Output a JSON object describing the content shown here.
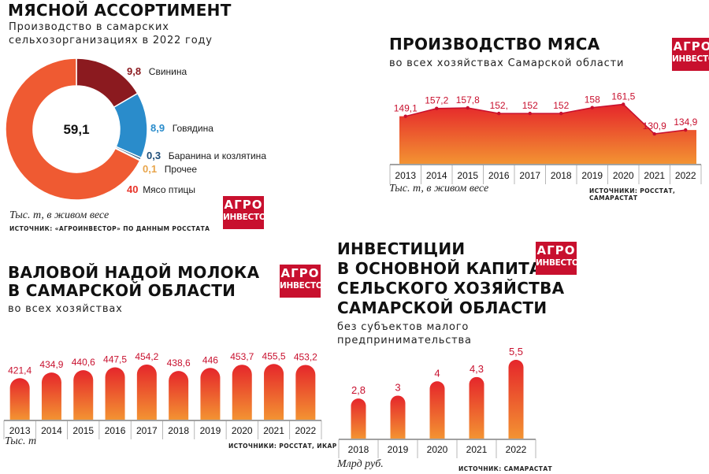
{
  "colors": {
    "pork": "#8b1a1f",
    "beef": "#2a8ccb",
    "lamb": "#1f4e79",
    "other": "#e8a54b",
    "poultry": "#e8342a",
    "donut_outer": "#ef5a32",
    "bar_top": "#e5262b",
    "bar_bottom": "#f39332",
    "value_label": "#c8102e",
    "logo": "#c8102e"
  },
  "logo": {
    "line1": "АГРО",
    "line2": "ИНВЕСТОР"
  },
  "meat_assortment": {
    "title": "МЯСНОЙ АССОРТИМЕНТ",
    "subtitle_line1": "Производство в самарских",
    "subtitle_line2": "сельхозорганизациях в 2022 году",
    "total": "59,1",
    "unit": "Тыс. т, в живом весе",
    "source": "ИСТОЧНИК: «АГРОИНВЕСТОР» ПО ДАННЫМ РОССТАТА"
  },
  "meat_production": {
    "title": "ПРОИЗВОДСТВО МЯСА",
    "subtitle": "во всех хозяйствах Самарской области",
    "unit": "Тыс. т, в живом весе",
    "source": "ИСТОЧНИКИ: РОССТАТ, САМАРАСТАТ"
  },
  "milk": {
    "title_line1": "ВАЛОВОЙ НАДОЙ МОЛОКА",
    "title_line2": "В САМАРСКОЙ ОБЛАСТИ",
    "subtitle": "во всех хозяйствах",
    "unit": "Тыс. т",
    "source": "ИСТОЧНИКИ: РОССТАТ, ИКАР"
  },
  "investments": {
    "title_line1": "ИНВЕСТИЦИИ",
    "title_line2": "В ОСНОВНОЙ КАПИТАЛ",
    "title_line3": "СЕЛЬСКОГО ХОЗЯЙСТВА",
    "title_line4": "САМАРСКОЙ ОБЛАСТИ",
    "subtitle_line1": "без субъектов малого",
    "subtitle_line2": "предпринимательства",
    "unit": "Млрд руб.",
    "source": "ИСТОЧНИК: САМАРАСТАТ"
  },
  "chart_data": [
    {
      "type": "pie",
      "title": "МЯСНОЙ АССОРТИМЕНТ",
      "center_label": "59,1",
      "slices": [
        {
          "name": "Свинина",
          "value": 9.8,
          "label": "9,8",
          "color": "#8b1a1f"
        },
        {
          "name": "Говядина",
          "value": 8.9,
          "label": "8,9",
          "color": "#2a8ccb"
        },
        {
          "name": "Баранина и козлятина",
          "value": 0.3,
          "label": "0,3",
          "color": "#1f4e79"
        },
        {
          "name": "Прочее",
          "value": 0.1,
          "label": "0,1",
          "color": "#e8a54b"
        },
        {
          "name": "Мясо птицы",
          "value": 40,
          "label": "40",
          "color": "#e8342a"
        }
      ]
    },
    {
      "type": "area",
      "title": "ПРОИЗВОДСТВО МЯСА",
      "x": [
        "2013",
        "2014",
        "2015",
        "2016",
        "2017",
        "2018",
        "2019",
        "2020",
        "2021",
        "2022"
      ],
      "values": [
        149.1,
        157.2,
        157.8,
        152,
        152,
        152,
        158,
        161.5,
        130.9,
        134.9
      ],
      "labels": [
        "149,1",
        "157,2",
        "157,8",
        "152,",
        "152",
        "152",
        "158",
        "161,5",
        "130,9",
        "134,9"
      ],
      "ylim": [
        0,
        170
      ]
    },
    {
      "type": "bar",
      "title": "ВАЛОВОЙ НАДОЙ МОЛОКА В САМАРСКОЙ ОБЛАСТИ",
      "categories": [
        "2013",
        "2014",
        "2015",
        "2016",
        "2017",
        "2018",
        "2019",
        "2020",
        "2021",
        "2022"
      ],
      "values": [
        421.4,
        434.9,
        440.6,
        447.5,
        454.2,
        438.6,
        446,
        453.7,
        455.5,
        453.2
      ],
      "labels": [
        "421,4",
        "434,9",
        "440,6",
        "447,5",
        "454,2",
        "438,6",
        "446",
        "453,7",
        "455,5",
        "453,2"
      ]
    },
    {
      "type": "bar",
      "title": "ИНВЕСТИЦИИ В ОСНОВНОЙ КАПИТАЛ СЕЛЬСКОГО ХОЗЯЙСТВА САМАРСКОЙ ОБЛАСТИ",
      "categories": [
        "2018",
        "2019",
        "2020",
        "2021",
        "2022"
      ],
      "values": [
        2.8,
        3,
        4,
        4.3,
        5.5
      ],
      "labels": [
        "2,8",
        "3",
        "4",
        "4,3",
        "5,5"
      ],
      "ylim": [
        0,
        5.5
      ]
    }
  ]
}
